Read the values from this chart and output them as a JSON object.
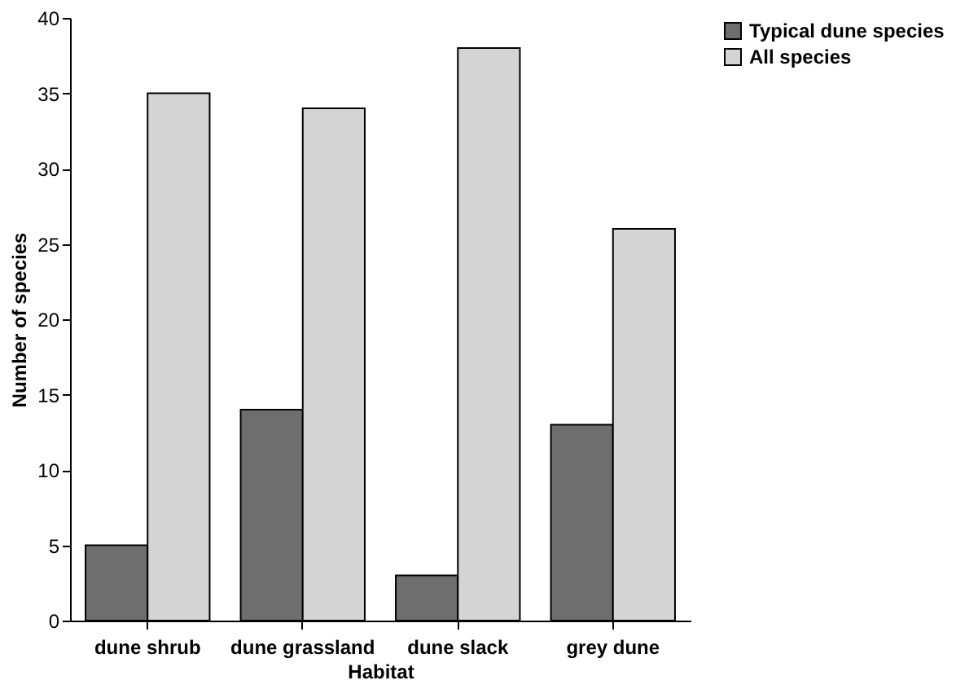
{
  "chart_data": {
    "type": "bar",
    "xlabel": "Habitat",
    "ylabel": "Number of species",
    "categories": [
      "dune shrub",
      "dune grassland",
      "dune slack",
      "grey dune"
    ],
    "series": [
      {
        "name": "Typical dune species",
        "color": "#6e6e6e",
        "values": [
          5,
          14,
          3,
          13
        ]
      },
      {
        "name": "All species",
        "color": "#d4d4d4",
        "values": [
          35,
          34,
          38,
          26
        ]
      }
    ],
    "ylim": [
      0,
      40
    ],
    "yticks": [
      0,
      5,
      10,
      15,
      20,
      25,
      30,
      35,
      40
    ],
    "grid": false,
    "legend": "top right"
  }
}
